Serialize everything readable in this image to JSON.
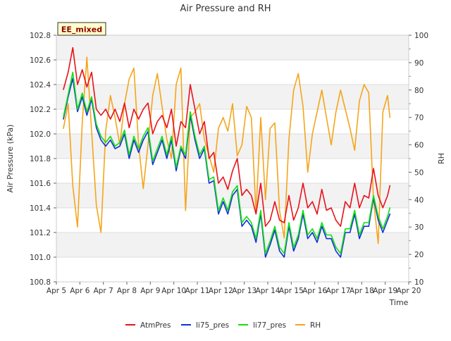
{
  "chart_data": {
    "type": "line",
    "title": "Air Pressure and RH",
    "site_badge": "EE_mixed",
    "xlabel": "Time",
    "ylabel_left": "Air Pressure (kPa)",
    "ylabel_right": "RH",
    "x_ticks": [
      "Apr 5",
      "Apr 6",
      "Apr 7",
      "Apr 8",
      "Apr 9",
      "Apr 10",
      "Apr 11",
      "Apr 12",
      "Apr 13",
      "Apr 14",
      "Apr 15",
      "Apr 16",
      "Apr 17",
      "Apr 18",
      "Apr 19",
      "Apr 20"
    ],
    "xlim": [
      5,
      20
    ],
    "ylim_left": [
      100.8,
      102.8
    ],
    "ylim_right": [
      10,
      100
    ],
    "y_ticks_left": [
      "100.8",
      "101.0",
      "101.2",
      "101.4",
      "101.6",
      "101.8",
      "102.0",
      "102.2",
      "102.4",
      "102.6",
      "102.8"
    ],
    "y_ticks_right": [
      "10",
      "20",
      "30",
      "40",
      "50",
      "60",
      "70",
      "80",
      "90",
      "100"
    ],
    "grid": true,
    "legend_position": "bottom",
    "series": [
      {
        "name": "AtmPres",
        "color": "#e8121b",
        "axis": "left",
        "x": [
          5.3,
          5.5,
          5.7,
          5.9,
          6.1,
          6.3,
          6.5,
          6.7,
          6.9,
          7.1,
          7.3,
          7.5,
          7.7,
          7.9,
          8.1,
          8.3,
          8.5,
          8.7,
          8.9,
          9.1,
          9.3,
          9.5,
          9.7,
          9.9,
          10.1,
          10.3,
          10.5,
          10.7,
          10.9,
          11.1,
          11.3,
          11.5,
          11.7,
          11.9,
          12.1,
          12.3,
          12.5,
          12.7,
          12.9,
          13.1,
          13.3,
          13.5,
          13.7,
          13.9,
          14.1,
          14.3,
          14.5,
          14.7,
          14.9,
          15.1,
          15.3,
          15.5,
          15.7,
          15.9,
          16.1,
          16.3,
          16.5,
          16.7,
          16.9,
          17.1,
          17.3,
          17.5,
          17.7,
          17.9,
          18.1,
          18.3,
          18.5,
          18.7,
          18.9,
          19.1,
          19.2
        ],
        "values": [
          102.36,
          102.5,
          102.7,
          102.4,
          102.52,
          102.38,
          102.5,
          102.2,
          102.15,
          102.2,
          102.12,
          102.2,
          102.1,
          102.25,
          102.05,
          102.2,
          102.12,
          102.2,
          102.25,
          102.0,
          102.1,
          102.15,
          102.05,
          102.2,
          101.9,
          102.1,
          102.05,
          102.4,
          102.2,
          102.0,
          102.1,
          101.8,
          101.85,
          101.6,
          101.65,
          101.55,
          101.7,
          101.8,
          101.5,
          101.55,
          101.5,
          101.35,
          101.6,
          101.25,
          101.3,
          101.45,
          101.3,
          101.28,
          101.5,
          101.3,
          101.4,
          101.6,
          101.4,
          101.45,
          101.35,
          101.55,
          101.38,
          101.4,
          101.3,
          101.25,
          101.45,
          101.4,
          101.6,
          101.4,
          101.5,
          101.48,
          101.72,
          101.5,
          101.4,
          101.5,
          101.58
        ]
      },
      {
        "name": "li75_pres",
        "color": "#1030d8",
        "axis": "left",
        "x": [
          5.3,
          5.5,
          5.7,
          5.9,
          6.1,
          6.3,
          6.5,
          6.7,
          6.9,
          7.1,
          7.3,
          7.5,
          7.7,
          7.9,
          8.1,
          8.3,
          8.5,
          8.7,
          8.9,
          9.1,
          9.3,
          9.5,
          9.7,
          9.9,
          10.1,
          10.3,
          10.5,
          10.7,
          10.9,
          11.1,
          11.3,
          11.5,
          11.7,
          11.9,
          12.1,
          12.3,
          12.5,
          12.7,
          12.9,
          13.1,
          13.3,
          13.5,
          13.7,
          13.9,
          14.1,
          14.3,
          14.5,
          14.7,
          14.9,
          15.1,
          15.3,
          15.5,
          15.7,
          15.9,
          16.1,
          16.3,
          16.5,
          16.7,
          16.9,
          17.1,
          17.3,
          17.5,
          17.7,
          17.9,
          18.1,
          18.3,
          18.5,
          18.7,
          18.9,
          19.1,
          19.2
        ],
        "values": [
          102.12,
          102.3,
          102.45,
          102.18,
          102.3,
          102.15,
          102.28,
          102.05,
          101.95,
          101.9,
          101.95,
          101.88,
          101.9,
          102.0,
          101.8,
          101.95,
          101.85,
          101.95,
          102.02,
          101.75,
          101.85,
          101.95,
          101.8,
          101.95,
          101.7,
          101.88,
          101.8,
          102.15,
          101.95,
          101.8,
          101.88,
          101.6,
          101.62,
          101.35,
          101.45,
          101.35,
          101.5,
          101.55,
          101.25,
          101.3,
          101.25,
          101.12,
          101.35,
          101.0,
          101.1,
          101.22,
          101.05,
          101.0,
          101.25,
          101.05,
          101.15,
          101.35,
          101.15,
          101.2,
          101.12,
          101.25,
          101.15,
          101.15,
          101.05,
          101.0,
          101.2,
          101.2,
          101.35,
          101.15,
          101.25,
          101.25,
          101.48,
          101.3,
          101.2,
          101.3,
          101.35
        ]
      },
      {
        "name": "li77_pres",
        "color": "#10e010",
        "axis": "left",
        "x": [
          5.3,
          5.5,
          5.7,
          5.9,
          6.1,
          6.3,
          6.5,
          6.7,
          6.9,
          7.1,
          7.3,
          7.5,
          7.7,
          7.9,
          8.1,
          8.3,
          8.5,
          8.7,
          8.9,
          9.1,
          9.3,
          9.5,
          9.7,
          9.9,
          10.1,
          10.3,
          10.5,
          10.7,
          10.9,
          11.1,
          11.3,
          11.5,
          11.7,
          11.9,
          12.1,
          12.3,
          12.5,
          12.7,
          12.9,
          13.1,
          13.3,
          13.5,
          13.7,
          13.9,
          14.1,
          14.3,
          14.5,
          14.7,
          14.9,
          15.1,
          15.3,
          15.5,
          15.7,
          15.9,
          16.1,
          16.3,
          16.5,
          16.7,
          16.9,
          17.1,
          17.3,
          17.5,
          17.7,
          17.9,
          18.1,
          18.3,
          18.5,
          18.7,
          18.9,
          19.1,
          19.2
        ],
        "values": [
          102.14,
          102.32,
          102.5,
          102.2,
          102.33,
          102.18,
          102.3,
          102.08,
          101.98,
          101.93,
          101.98,
          101.9,
          101.93,
          102.03,
          101.83,
          101.98,
          101.88,
          101.98,
          102.05,
          101.78,
          101.88,
          101.98,
          101.83,
          101.98,
          101.73,
          101.9,
          101.83,
          102.18,
          101.98,
          101.83,
          101.9,
          101.63,
          101.65,
          101.38,
          101.48,
          101.38,
          101.53,
          101.58,
          101.28,
          101.33,
          101.28,
          101.15,
          101.38,
          101.03,
          101.13,
          101.25,
          101.08,
          101.03,
          101.28,
          101.08,
          101.18,
          101.38,
          101.18,
          101.23,
          101.15,
          101.28,
          101.18,
          101.18,
          101.08,
          101.03,
          101.23,
          101.23,
          101.38,
          101.18,
          101.28,
          101.28,
          101.5,
          101.33,
          101.23,
          101.33,
          101.4
        ]
      },
      {
        "name": "RH",
        "color": "#f5a51a",
        "axis": "right",
        "x": [
          5.3,
          5.5,
          5.7,
          5.9,
          6.1,
          6.3,
          6.5,
          6.7,
          6.9,
          7.1,
          7.3,
          7.5,
          7.7,
          7.9,
          8.1,
          8.3,
          8.5,
          8.7,
          8.9,
          9.1,
          9.3,
          9.5,
          9.7,
          9.9,
          10.1,
          10.3,
          10.5,
          10.7,
          10.9,
          11.1,
          11.3,
          11.5,
          11.7,
          11.9,
          12.1,
          12.3,
          12.5,
          12.7,
          12.9,
          13.1,
          13.3,
          13.5,
          13.7,
          13.9,
          14.1,
          14.3,
          14.5,
          14.7,
          14.9,
          15.1,
          15.3,
          15.5,
          15.7,
          15.9,
          16.1,
          16.3,
          16.5,
          16.7,
          16.9,
          17.1,
          17.3,
          17.5,
          17.7,
          17.9,
          18.1,
          18.3,
          18.5,
          18.7,
          18.9,
          19.1,
          19.2
        ],
        "values": [
          66,
          75,
          45,
          30,
          68,
          92,
          65,
          38,
          28,
          65,
          78,
          70,
          60,
          75,
          84,
          88,
          60,
          44,
          60,
          78,
          86,
          74,
          62,
          55,
          82,
          88,
          36,
          70,
          72,
          75,
          62,
          56,
          50,
          66,
          70,
          65,
          75,
          56,
          60,
          74,
          70,
          35,
          70,
          40,
          66,
          68,
          36,
          26,
          62,
          80,
          86,
          74,
          50,
          64,
          72,
          80,
          70,
          60,
          72,
          80,
          73,
          66,
          58,
          76,
          82,
          79,
          40,
          24,
          72,
          78,
          70
        ]
      }
    ]
  }
}
